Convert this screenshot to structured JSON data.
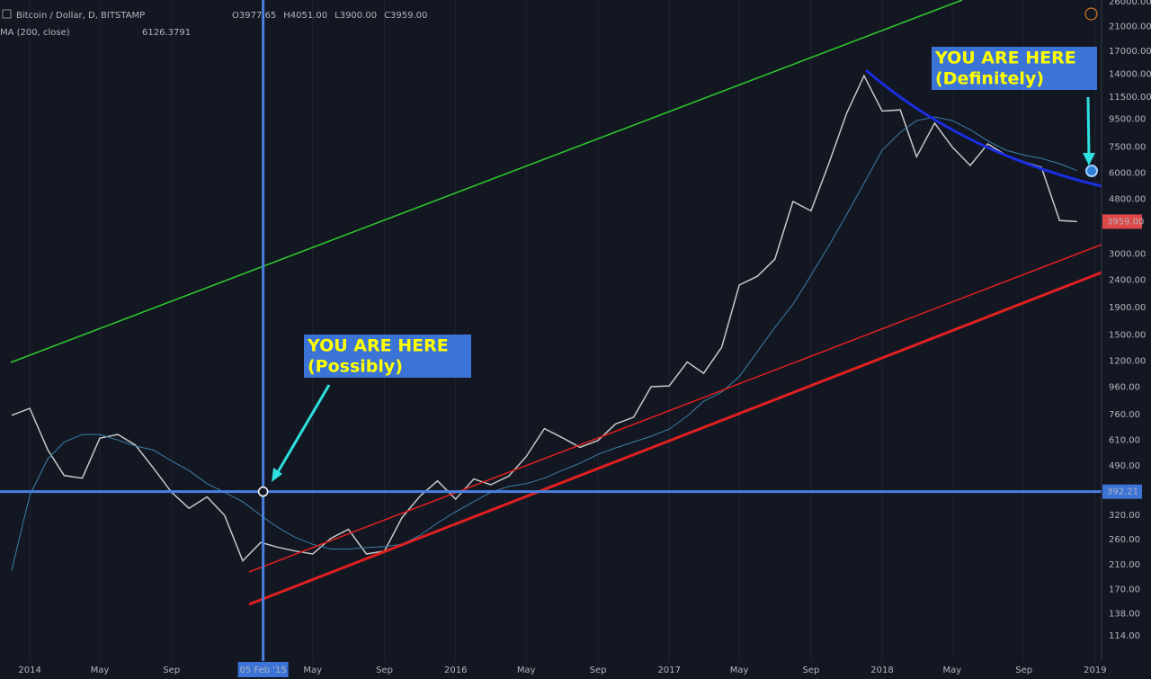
{
  "chart_data": {
    "type": "line",
    "log_scale": true,
    "grid": true,
    "xlim": [
      "2013-11-11",
      "2019-01-12"
    ],
    "ylim": [
      92,
      26400
    ],
    "xticks": [
      {
        "value": "2014-01-01",
        "label": "2014"
      },
      {
        "value": "2014-05-01",
        "label": "May"
      },
      {
        "value": "2014-09-01",
        "label": "Sep"
      },
      {
        "value": "2015-05-01",
        "label": "May"
      },
      {
        "value": "2015-09-01",
        "label": "Sep"
      },
      {
        "value": "2016-01-01",
        "label": "2016"
      },
      {
        "value": "2016-05-01",
        "label": "May"
      },
      {
        "value": "2016-09-01",
        "label": "Sep"
      },
      {
        "value": "2017-01-01",
        "label": "2017"
      },
      {
        "value": "2017-05-01",
        "label": "May"
      },
      {
        "value": "2017-09-01",
        "label": "Sep"
      },
      {
        "value": "2018-01-01",
        "label": "2018"
      },
      {
        "value": "2018-05-01",
        "label": "May"
      },
      {
        "value": "2018-09-01",
        "label": "Sep"
      },
      {
        "value": "2019-01-01",
        "label": "2019"
      }
    ],
    "yticks": [
      {
        "value": 114,
        "label": "114.00"
      },
      {
        "value": 138,
        "label": "138.00"
      },
      {
        "value": 170,
        "label": "170.00"
      },
      {
        "value": 210,
        "label": "210.00"
      },
      {
        "value": 260,
        "label": "260.00"
      },
      {
        "value": 320,
        "label": "320.00"
      },
      {
        "value": 490,
        "label": "490.00"
      },
      {
        "value": 610,
        "label": "610.00"
      },
      {
        "value": 760,
        "label": "760.00"
      },
      {
        "value": 960,
        "label": "960.00"
      },
      {
        "value": 1200,
        "label": "1200.00"
      },
      {
        "value": 1500,
        "label": "1500.00"
      },
      {
        "value": 1900,
        "label": "1900.00"
      },
      {
        "value": 2400,
        "label": "2400.00"
      },
      {
        "value": 3000,
        "label": "3000.00"
      },
      {
        "value": 4800,
        "label": "4800.00"
      },
      {
        "value": 6000,
        "label": "6000.00"
      },
      {
        "value": 7500,
        "label": "7500.00"
      },
      {
        "value": 9500,
        "label": "9500.00"
      },
      {
        "value": 11500,
        "label": "11500.00"
      },
      {
        "value": 14000,
        "label": "14000.00"
      },
      {
        "value": 17000,
        "label": "17000.00"
      },
      {
        "value": 21000,
        "label": "21000.00"
      },
      {
        "value": 26000,
        "label": "26000.00"
      }
    ],
    "x": [
      "2013-12",
      "2014-01",
      "2014-02",
      "2014-03",
      "2014-04",
      "2014-05",
      "2014-06",
      "2014-07",
      "2014-08",
      "2014-09",
      "2014-10",
      "2014-11",
      "2014-12",
      "2015-01",
      "2015-02",
      "2015-03",
      "2015-04",
      "2015-05",
      "2015-06",
      "2015-07",
      "2015-08",
      "2015-09",
      "2015-10",
      "2015-11",
      "2015-12",
      "2016-01",
      "2016-02",
      "2016-03",
      "2016-04",
      "2016-05",
      "2016-06",
      "2016-07",
      "2016-08",
      "2016-09",
      "2016-10",
      "2016-11",
      "2016-12",
      "2017-01",
      "2017-02",
      "2017-03",
      "2017-04",
      "2017-05",
      "2017-06",
      "2017-07",
      "2017-08",
      "2017-09",
      "2017-10",
      "2017-11",
      "2017-12",
      "2018-01",
      "2018-02",
      "2018-03",
      "2018-04",
      "2018-05",
      "2018-06",
      "2018-07",
      "2018-08",
      "2018-09",
      "2018-10",
      "2018-11",
      "2018-12"
    ],
    "series": [
      {
        "name": "Bitcoin / Dollar, D, BITSTAMP",
        "color": "#c8c8c8",
        "values": [
          754,
          800,
          560,
          450,
          440,
          620,
          640,
          585,
          480,
          390,
          340,
          375,
          320,
          217,
          254,
          244,
          236,
          230,
          263,
          284,
          230,
          236,
          314,
          378,
          430,
          368,
          437,
          416,
          448,
          530,
          673,
          624,
          573,
          608,
          700,
          742,
          963,
          970,
          1190,
          1080,
          1350,
          2300,
          2480,
          2870,
          4700,
          4340,
          6450,
          10000,
          13800,
          10200,
          10300,
          6900,
          9200,
          7500,
          6400,
          7700,
          7000,
          6600,
          6300,
          4000,
          3959
        ]
      },
      {
        "name": "MA (200, close)",
        "color": "#3c7fa8",
        "values": [
          200,
          380,
          520,
          600,
          640,
          640,
          610,
          580,
          560,
          510,
          470,
          420,
          390,
          360,
          320,
          290,
          265,
          250,
          240,
          240,
          243,
          245,
          250,
          270,
          300,
          330,
          360,
          390,
          410,
          420,
          440,
          470,
          500,
          540,
          570,
          600,
          630,
          670,
          750,
          850,
          920,
          1050,
          1300,
          1600,
          1950,
          2500,
          3200,
          4200,
          5500,
          7300,
          8500,
          9400,
          9700,
          9400,
          8700,
          7900,
          7300,
          7000,
          6800,
          6500,
          6126.3791
        ]
      }
    ],
    "ohlc": {
      "o": "3977.65",
      "h": "4051.00",
      "l": "3900.00",
      "c": "3959.00"
    },
    "ohlc_letters": [
      "O",
      "H",
      "L",
      "C"
    ],
    "crosshair": {
      "x": {
        "value": "2015-02-05",
        "label": "05 Feb '15"
      },
      "y": 392.21
    },
    "last_price": {
      "value": 3959,
      "label": "3959.00"
    }
  },
  "annotations": [
    {
      "lines": [
        "YOU ARE HERE",
        "(Possibly)"
      ]
    },
    {
      "lines": [
        "YOU ARE HERE",
        "(Definitely)"
      ]
    }
  ]
}
